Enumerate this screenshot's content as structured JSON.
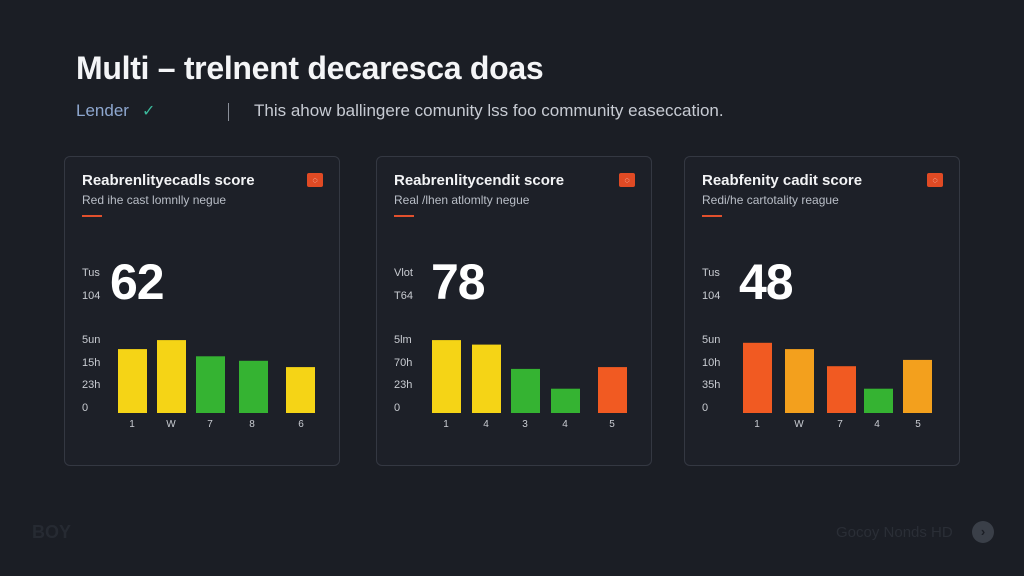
{
  "header": {
    "title": "Multi – trelnent decaresca doas",
    "lender": "Lender",
    "lender_check": "✓",
    "description": "This ahow ballingere comunity lss foo community easeccation."
  },
  "colors": {
    "yellow": "#f5d416",
    "green": "#35b332",
    "orange": "#f3a01d",
    "red_orange": "#f15a22",
    "accent_red": "#e04a24",
    "background": "#1b1e25"
  },
  "cards": [
    {
      "title": "Reabrenlityecadls score",
      "subtitle": "Red ihe cast lomnlly negue",
      "label_a": "Tus",
      "label_b": "104",
      "score": "62",
      "y_ticks": [
        "5un",
        "15h",
        "23h",
        "0"
      ],
      "x_ticks": [
        "1",
        "W",
        "7",
        "8",
        "6"
      ],
      "bars": [
        {
          "value": 0.71,
          "color": "#f5d416"
        },
        {
          "value": 0.81,
          "color": "#f5d416"
        },
        {
          "value": 0.63,
          "color": "#35b332"
        },
        {
          "value": 0.58,
          "color": "#35b332"
        },
        {
          "value": 0.51,
          "color": "#f5d416"
        }
      ]
    },
    {
      "title": "Reabrenlitycendit score",
      "subtitle": "Real /lhen atlomlty negue",
      "label_a": "Vlot",
      "label_b": "T64",
      "score": "78",
      "y_ticks": [
        "5lm",
        "70h",
        "23h",
        "0"
      ],
      "x_ticks": [
        "1",
        "4",
        "3",
        "4",
        "5"
      ],
      "bars": [
        {
          "value": 0.81,
          "color": "#f5d416"
        },
        {
          "value": 0.76,
          "color": "#f5d416"
        },
        {
          "value": 0.49,
          "color": "#35b332"
        },
        {
          "value": 0.27,
          "color": "#35b332"
        },
        {
          "value": 0.51,
          "color": "#f15a22"
        }
      ]
    },
    {
      "title": "Reabfenity cadit score",
      "subtitle": "Redi/he cartotality reague",
      "label_a": "Tus",
      "label_b": "104",
      "score": "48",
      "y_ticks": [
        "5un",
        "10h",
        "35h",
        "0"
      ],
      "x_ticks": [
        "1",
        "W",
        "7",
        "4",
        "5"
      ],
      "bars": [
        {
          "value": 0.78,
          "color": "#f15a22"
        },
        {
          "value": 0.71,
          "color": "#f3a01d"
        },
        {
          "value": 0.52,
          "color": "#f15a22"
        },
        {
          "value": 0.27,
          "color": "#35b332"
        },
        {
          "value": 0.59,
          "color": "#f3a01d"
        }
      ]
    }
  ],
  "watermarks": {
    "left": "BOY",
    "right": "Gocoy Nonds HD"
  }
}
